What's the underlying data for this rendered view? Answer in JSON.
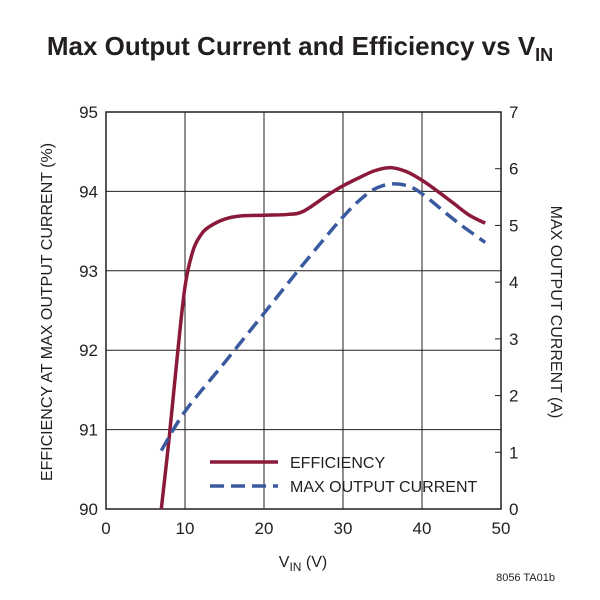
{
  "chart_data": {
    "type": "line",
    "title_main": "Max Output Current and Efficiency vs V",
    "title_sub": "IN",
    "xlabel_main": "V",
    "xlabel_sub": "IN",
    "xlabel_unit": " (V)",
    "ylabel_left": "EFFICIENCY AT MAX OUTPUT CURRENT (%)",
    "ylabel_right": "MAX OUTPUT CURRENT (A)",
    "xlim": [
      0,
      50
    ],
    "ylim_left": [
      90,
      95
    ],
    "ylim_right": [
      0,
      7
    ],
    "x_ticks": [
      "0",
      "10",
      "20",
      "30",
      "40",
      "50"
    ],
    "y_ticks_left": [
      "90",
      "91",
      "92",
      "93",
      "94",
      "95"
    ],
    "y_ticks_right": [
      "0",
      "1",
      "2",
      "3",
      "4",
      "5",
      "6",
      "7"
    ],
    "grid": true,
    "legend_position": "bottom-right",
    "figure_id": "8056 TA01b",
    "series": [
      {
        "name": "EFFICIENCY",
        "axis": "left",
        "color": "#8b1a3a",
        "dash": "solid",
        "x": [
          7,
          8,
          9,
          10,
          11,
          12,
          13,
          15,
          17,
          20,
          23,
          25,
          28,
          30,
          32,
          34,
          36,
          38,
          40,
          42,
          44,
          46,
          48
        ],
        "y": [
          90.0,
          90.9,
          91.9,
          92.8,
          93.25,
          93.45,
          93.55,
          93.65,
          93.69,
          93.7,
          93.71,
          93.75,
          93.95,
          94.07,
          94.17,
          94.26,
          94.3,
          94.25,
          94.14,
          94.0,
          93.85,
          93.7,
          93.6
        ]
      },
      {
        "name": "MAX OUTPUT CURRENT",
        "axis": "right",
        "color": "#3a5aa0",
        "dash": "dashed",
        "x": [
          7,
          10,
          15,
          20,
          25,
          30,
          33,
          35,
          37,
          39,
          41,
          43,
          45,
          48
        ],
        "y": [
          1.03,
          1.72,
          2.58,
          3.45,
          4.32,
          5.15,
          5.55,
          5.7,
          5.73,
          5.65,
          5.45,
          5.22,
          5.0,
          4.7
        ]
      }
    ]
  }
}
